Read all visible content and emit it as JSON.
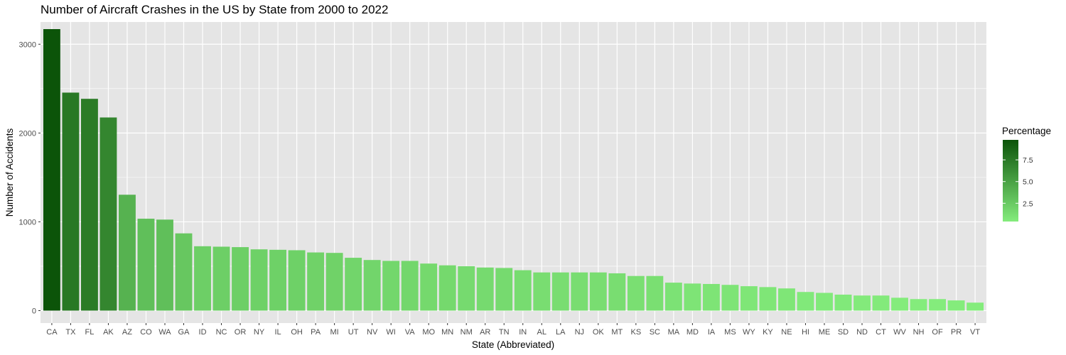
{
  "chart_data": {
    "type": "bar",
    "title": "Number of Aircraft Crashes in the US by State from 2000 to 2022",
    "xlabel": "State (Abbreviated)",
    "ylabel": "Number of Accidents",
    "ylim": [
      -140,
      3250
    ],
    "yticks": [
      0,
      1000,
      2000,
      3000
    ],
    "grid": true,
    "legend": {
      "title": "Percentage",
      "placement": "right",
      "range": [
        0.4,
        9.8
      ],
      "ticks": [
        2.5,
        5.0,
        7.5
      ],
      "tick_labels": [
        "2.5",
        "5.0",
        "7.5"
      ],
      "low_color": "#84ec7c",
      "high_color": "#0c5409"
    },
    "colors": {
      "panel_bg": "#e5e5e5",
      "grid": "#ffffff"
    },
    "categories": [
      "CA",
      "TX",
      "FL",
      "AK",
      "AZ",
      "CO",
      "WA",
      "GA",
      "ID",
      "NC",
      "OR",
      "NY",
      "IL",
      "OH",
      "PA",
      "MI",
      "UT",
      "NV",
      "WI",
      "VA",
      "MO",
      "MN",
      "NM",
      "AR",
      "TN",
      "IN",
      "AL",
      "LA",
      "NJ",
      "OK",
      "MT",
      "KS",
      "SC",
      "MA",
      "MD",
      "IA",
      "MS",
      "WY",
      "KY",
      "NE",
      "HI",
      "ME",
      "SD",
      "ND",
      "CT",
      "WV",
      "NH",
      "OF",
      "PR",
      "VT"
    ],
    "values": [
      3170,
      2455,
      2385,
      2175,
      1305,
      1035,
      1025,
      870,
      725,
      720,
      715,
      690,
      685,
      680,
      655,
      650,
      595,
      570,
      560,
      560,
      530,
      510,
      500,
      485,
      480,
      455,
      430,
      430,
      430,
      430,
      420,
      390,
      390,
      315,
      305,
      300,
      290,
      275,
      265,
      250,
      210,
      200,
      180,
      170,
      170,
      145,
      130,
      130,
      115,
      90
    ],
    "percentages": [
      9.8,
      7.6,
      7.4,
      6.7,
      4.0,
      3.2,
      3.2,
      2.7,
      2.2,
      2.2,
      2.2,
      2.1,
      2.1,
      2.1,
      2.0,
      2.0,
      1.8,
      1.8,
      1.7,
      1.7,
      1.6,
      1.6,
      1.5,
      1.5,
      1.5,
      1.4,
      1.3,
      1.3,
      1.3,
      1.3,
      1.3,
      1.2,
      1.2,
      1.0,
      0.9,
      0.9,
      0.9,
      0.8,
      0.8,
      0.8,
      0.6,
      0.6,
      0.6,
      0.5,
      0.5,
      0.4,
      0.4,
      0.4,
      0.4,
      0.3
    ]
  }
}
